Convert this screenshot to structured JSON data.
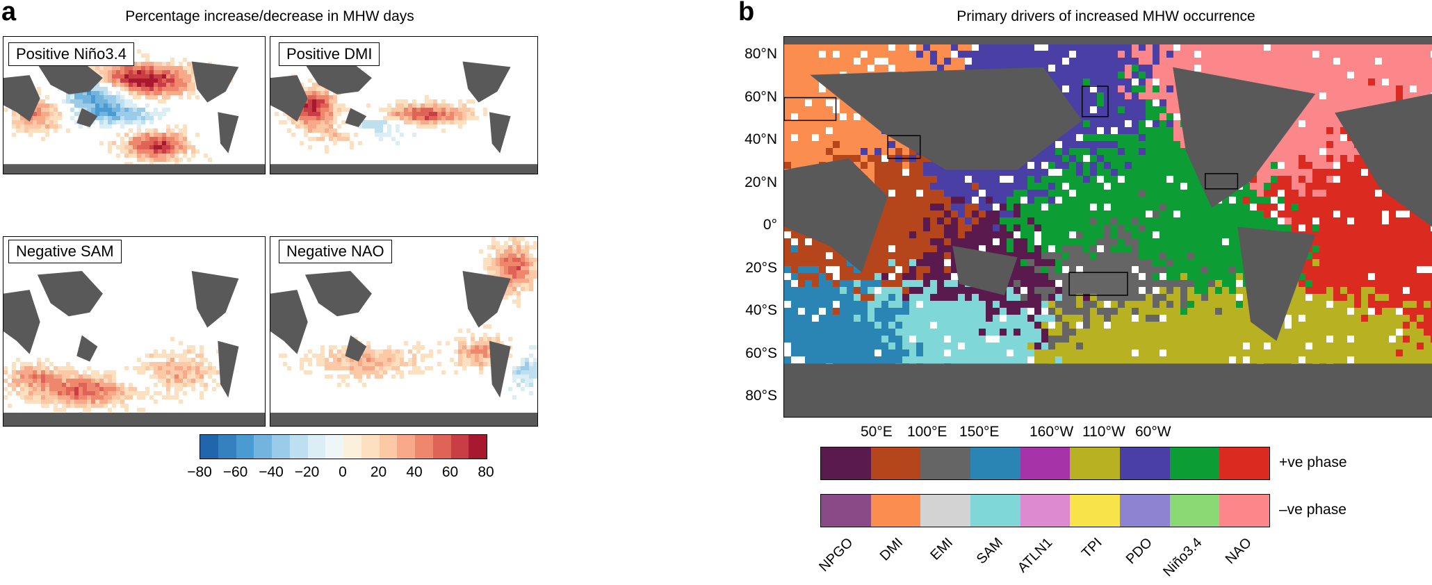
{
  "panel_a": {
    "letter": "a",
    "title": "Percentage increase/decrease in MHW days",
    "maps": [
      {
        "label": "Positive Niño3.4",
        "pattern": "nino"
      },
      {
        "label": "Positive DMI",
        "pattern": "dmi"
      },
      {
        "label": "Negative SAM",
        "pattern": "sam"
      },
      {
        "label": "Negative NAO",
        "pattern": "nao"
      }
    ],
    "colorbar": {
      "ticks": [
        "−80",
        "−60",
        "−40",
        "−20",
        "0",
        "20",
        "40",
        "60",
        "80"
      ],
      "colors": [
        "#2166ac",
        "#3581c0",
        "#4a9bd1",
        "#72b4de",
        "#9accea",
        "#bddfef",
        "#dbeef5",
        "#eef6f7",
        "#fbf0dc",
        "#fde0c0",
        "#fcc8a6",
        "#f8a98a",
        "#ef876d",
        "#e06357",
        "#c93e44",
        "#a8192f"
      ]
    }
  },
  "panel_b": {
    "letter": "b",
    "title": "Primary drivers of increased MHW occurrence",
    "lat_labels": [
      "80°N",
      "60°N",
      "40°N",
      "20°N",
      "0°",
      "20°S",
      "40°S",
      "60°S",
      "80°S"
    ],
    "lon_labels": [
      "50°E",
      "100°E",
      "150°E",
      "160°W",
      "110°W",
      "60°W"
    ],
    "legend": {
      "positive_label": "+ve phase",
      "negative_label": "–ve phase",
      "indices": [
        "NPGO",
        "DMI",
        "EMI",
        "SAM",
        "ATLN1",
        "TPI",
        "PDO",
        "Niño3.4",
        "NAO"
      ],
      "positive_colors": [
        "#5a1a4e",
        "#b5461c",
        "#656565",
        "#2a85b5",
        "#a634a8",
        "#b8b121",
        "#4a3fa4",
        "#0c9d34",
        "#db2a20"
      ],
      "negative_colors": [
        "#8a4a87",
        "#fb8d4f",
        "#d3d3d3",
        "#7fd7d7",
        "#dd8ad0",
        "#f6e44a",
        "#8d83d1",
        "#8ad974",
        "#fc878a"
      ]
    }
  }
}
